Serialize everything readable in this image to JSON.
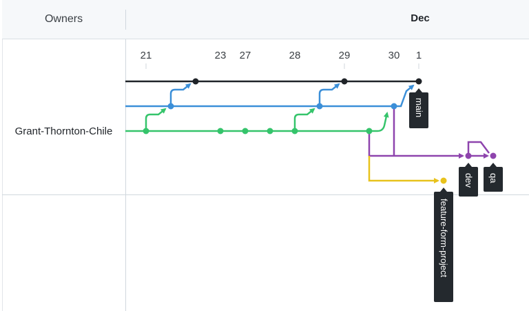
{
  "header": {
    "owners_label": "Owners",
    "month_label": "Dec"
  },
  "owner": {
    "name": "Grant-Thornton-Chile"
  },
  "ticks": [
    "21",
    "23",
    "27",
    "28",
    "29",
    "30",
    "1"
  ],
  "branches": {
    "main": {
      "label": "main",
      "color": "#1f2328"
    },
    "develop": {
      "color": "#3b8fd8"
    },
    "green": {
      "color": "#35c46b"
    },
    "dev": {
      "label": "dev",
      "color": "#8e44ad"
    },
    "qa": {
      "label": "qa",
      "color": "#8e44ad"
    },
    "feature": {
      "label": "feature-form-project",
      "color": "#e8c21c"
    }
  }
}
